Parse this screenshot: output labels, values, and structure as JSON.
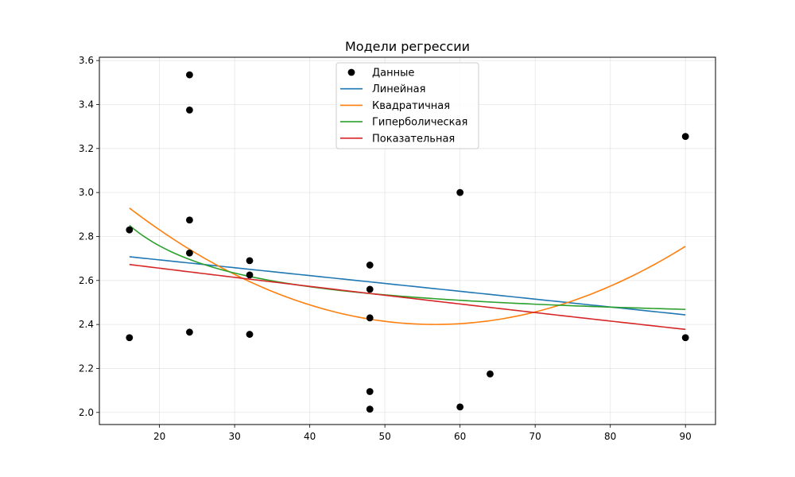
{
  "chart_data": {
    "type": "scatter",
    "title": "Модели регрессии",
    "xlabel": "",
    "ylabel": "",
    "xlim": [
      12,
      94
    ],
    "ylim": [
      1.945,
      3.615
    ],
    "xticks": [
      20,
      30,
      40,
      50,
      60,
      70,
      80,
      90
    ],
    "yticks": [
      2.0,
      2.2,
      2.4,
      2.6,
      2.8,
      3.0,
      3.2,
      3.4,
      3.6
    ],
    "xtick_labels": [
      "20",
      "30",
      "40",
      "50",
      "60",
      "70",
      "80",
      "90"
    ],
    "ytick_labels": [
      "2.0",
      "2.2",
      "2.4",
      "2.6",
      "2.8",
      "3.0",
      "3.2",
      "3.4",
      "3.6"
    ],
    "grid": true,
    "legend_position": "top-center",
    "series": [
      {
        "name": "Данные",
        "kind": "scatter",
        "color": "#000000",
        "points": [
          [
            16,
            2.83
          ],
          [
            16,
            2.34
          ],
          [
            24,
            3.535
          ],
          [
            24,
            3.375
          ],
          [
            24,
            2.875
          ],
          [
            24,
            2.725
          ],
          [
            24,
            2.365
          ],
          [
            32,
            2.69
          ],
          [
            32,
            2.625
          ],
          [
            32,
            2.355
          ],
          [
            48,
            2.67
          ],
          [
            48,
            2.56
          ],
          [
            48,
            2.43
          ],
          [
            48,
            2.095
          ],
          [
            48,
            2.015
          ],
          [
            60,
            3.0
          ],
          [
            60,
            2.025
          ],
          [
            64,
            2.175
          ],
          [
            90,
            3.255
          ],
          [
            90,
            2.34
          ]
        ]
      },
      {
        "name": "Линейная",
        "kind": "line",
        "color": "#1f77b4",
        "model": "linear",
        "params": {
          "a": 2.765,
          "b": -0.00357
        }
      },
      {
        "name": "Квадратичная",
        "kind": "line",
        "color": "#ff7f0e",
        "model": "quadratic",
        "params": {
          "x0": 56.67,
          "k": 0.00032,
          "c": 2.4
        }
      },
      {
        "name": "Гиперболическая",
        "kind": "line",
        "color": "#2ca02c",
        "model": "hyperbolic",
        "params": {
          "a": 2.386,
          "b": 7.43
        }
      },
      {
        "name": "Показательная",
        "kind": "line",
        "color": "#d62728",
        "model": "exponential",
        "params": {
          "a": 2.7412,
          "b": 0.99842
        }
      }
    ]
  }
}
